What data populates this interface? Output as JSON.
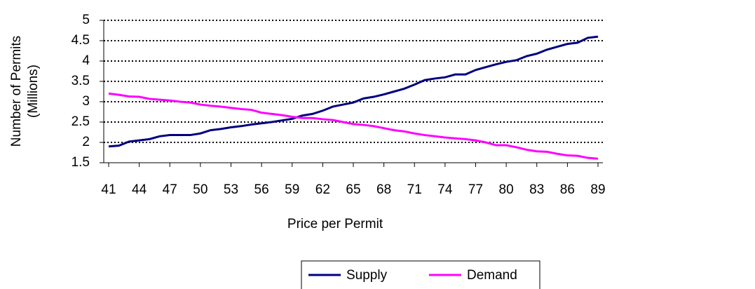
{
  "chart_data": {
    "type": "line",
    "x_label": "Price per Permit",
    "y_label": [
      "Number of Permits",
      "(Millions)"
    ],
    "x": [
      41,
      42,
      43,
      44,
      45,
      46,
      47,
      48,
      49,
      50,
      51,
      52,
      53,
      54,
      55,
      56,
      57,
      58,
      59,
      60,
      61,
      62,
      63,
      64,
      65,
      66,
      67,
      68,
      69,
      70,
      71,
      72,
      73,
      74,
      75,
      76,
      77,
      78,
      79,
      80,
      81,
      82,
      83,
      84,
      85,
      86,
      87,
      88,
      89
    ],
    "series": [
      {
        "name": "Supply",
        "color": "#000080",
        "values": [
          1.9,
          1.92,
          2.02,
          2.05,
          2.08,
          2.15,
          2.18,
          2.18,
          2.18,
          2.22,
          2.3,
          2.33,
          2.37,
          2.4,
          2.44,
          2.47,
          2.5,
          2.54,
          2.58,
          2.66,
          2.7,
          2.78,
          2.88,
          2.93,
          2.98,
          3.08,
          3.12,
          3.18,
          3.25,
          3.32,
          3.42,
          3.53,
          3.57,
          3.6,
          3.67,
          3.67,
          3.78,
          3.85,
          3.92,
          3.98,
          4.02,
          4.12,
          4.18,
          4.28,
          4.35,
          4.42,
          4.45,
          4.57,
          4.6
        ]
      },
      {
        "name": "Demand",
        "color": "#ff00ff",
        "values": [
          3.2,
          3.17,
          3.13,
          3.12,
          3.07,
          3.05,
          3.03,
          3.0,
          2.98,
          2.93,
          2.9,
          2.88,
          2.85,
          2.82,
          2.8,
          2.73,
          2.7,
          2.67,
          2.63,
          2.6,
          2.6,
          2.57,
          2.55,
          2.5,
          2.45,
          2.43,
          2.4,
          2.35,
          2.3,
          2.27,
          2.22,
          2.18,
          2.15,
          2.12,
          2.1,
          2.08,
          2.05,
          2.0,
          1.93,
          1.93,
          1.88,
          1.82,
          1.78,
          1.77,
          1.72,
          1.68,
          1.67,
          1.62,
          1.6
        ]
      }
    ],
    "xlim": [
      41,
      89
    ],
    "xticks": [
      41,
      44,
      47,
      50,
      53,
      56,
      59,
      62,
      65,
      68,
      71,
      74,
      77,
      80,
      83,
      86,
      89
    ],
    "ylim": [
      1.5,
      5
    ],
    "yticks": [
      1.5,
      2,
      2.5,
      3,
      3.5,
      4,
      4.5,
      5
    ],
    "grid": true,
    "legend": "bottom"
  }
}
